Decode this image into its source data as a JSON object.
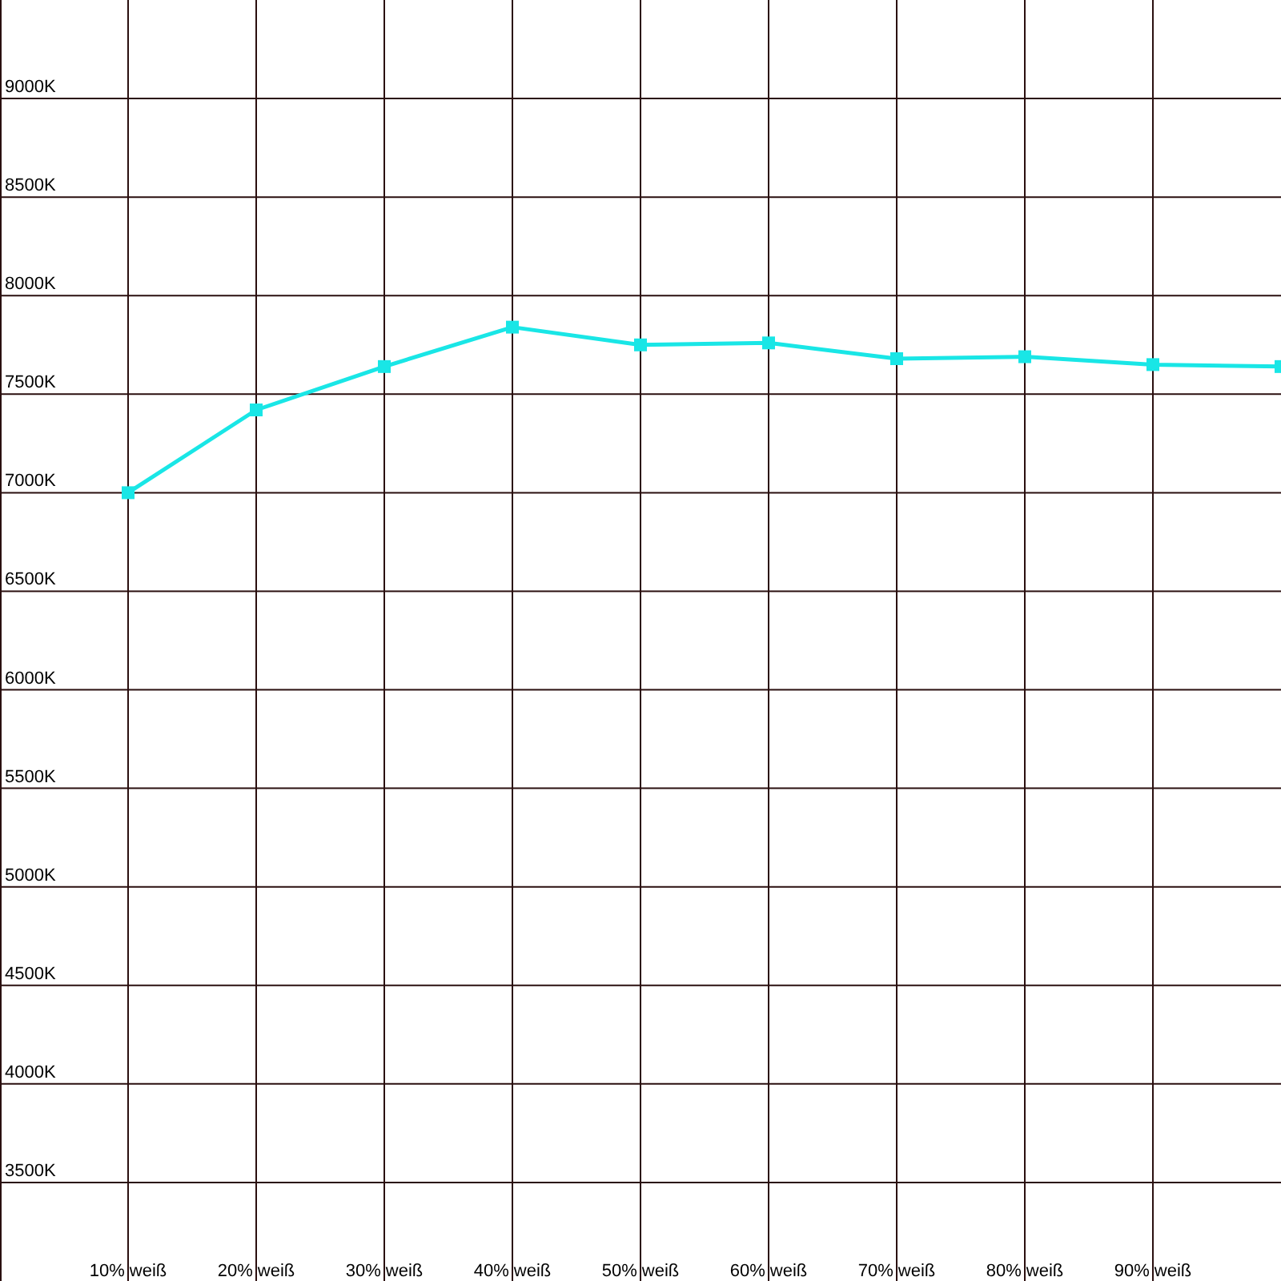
{
  "chart_data": {
    "type": "line",
    "x": [
      10,
      20,
      30,
      40,
      50,
      60,
      70,
      80,
      90,
      100
    ],
    "series": [
      {
        "color": "#19e6e6",
        "values": [
          7000,
          7420,
          7640,
          7840,
          7750,
          7760,
          7680,
          7690,
          7650,
          7640
        ]
      }
    ],
    "xlim": [
      0,
      100
    ],
    "xticks": [
      {
        "value": 10,
        "label": "10% weiß"
      },
      {
        "value": 20,
        "label": "20% weiß"
      },
      {
        "value": 30,
        "label": "30% weiß"
      },
      {
        "value": 40,
        "label": "40% weiß"
      },
      {
        "value": 50,
        "label": "50% weiß"
      },
      {
        "value": 60,
        "label": "60% weiß"
      },
      {
        "value": 70,
        "label": "70% weiß"
      },
      {
        "value": 80,
        "label": "80% weiß"
      },
      {
        "value": 90,
        "label": "90% weiß"
      }
    ],
    "ylim": [
      3000,
      9500
    ],
    "yticks": [
      {
        "value": 3500,
        "label": "3500K"
      },
      {
        "value": 4000,
        "label": "4000K"
      },
      {
        "value": 4500,
        "label": "4500K"
      },
      {
        "value": 5000,
        "label": "5000K"
      },
      {
        "value": 5500,
        "label": "5500K"
      },
      {
        "value": 6000,
        "label": "6000K"
      },
      {
        "value": 6500,
        "label": "6500K"
      },
      {
        "value": 7000,
        "label": "7000K"
      },
      {
        "value": 7500,
        "label": "7500K"
      },
      {
        "value": 8000,
        "label": "8000K"
      },
      {
        "value": 8500,
        "label": "8500K"
      },
      {
        "value": 9000,
        "label": "9000K"
      }
    ],
    "grid": true,
    "marker": "square",
    "line_style": "solid"
  }
}
